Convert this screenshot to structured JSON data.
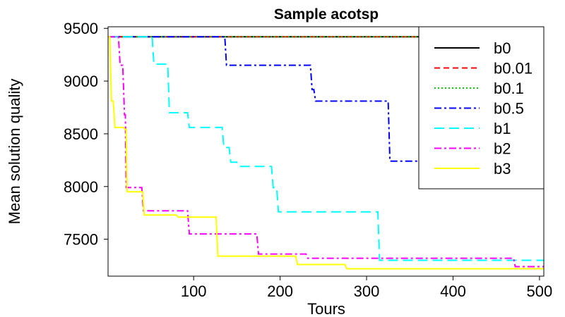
{
  "chart_data": {
    "type": "line",
    "title": "Sample acotsp",
    "xlabel": "Tours",
    "ylabel": "Mean solution quality",
    "xlim": [
      1,
      505
    ],
    "ylim": [
      7150,
      9515
    ],
    "xticks": [
      100,
      200,
      300,
      400,
      500
    ],
    "yticks": [
      7500,
      8000,
      8500,
      9000,
      9500
    ],
    "legend_position": "top-right",
    "grid": false,
    "series": [
      {
        "name": "b0",
        "color": "#000000",
        "dash": "solid",
        "x": [
          1,
          505
        ],
        "y": [
          9420,
          9420
        ]
      },
      {
        "name": "b0.01",
        "color": "#ff0000",
        "dash": "dashed",
        "x": [
          1,
          505
        ],
        "y": [
          9420,
          9420
        ]
      },
      {
        "name": "b0.1",
        "color": "#00cc00",
        "dash": "dotted",
        "x": [
          1,
          505
        ],
        "y": [
          9420,
          9420
        ]
      },
      {
        "name": "b0.5",
        "color": "#0000ff",
        "dash": "dashdot",
        "x": [
          1,
          136,
          138,
          235,
          237,
          239,
          241,
          325,
          327,
          505
        ],
        "y": [
          9420,
          9420,
          9150,
          9150,
          8920,
          8920,
          8810,
          8810,
          8240,
          8240
        ]
      },
      {
        "name": "b1",
        "color": "#00ffff",
        "dash": "longdash",
        "x": [
          1,
          52,
          54,
          70,
          72,
          93,
          95,
          133,
          135,
          141,
          143,
          150,
          152,
          190,
          192,
          196,
          198,
          313,
          315,
          505
        ],
        "y": [
          9420,
          9420,
          9160,
          9160,
          8700,
          8700,
          8560,
          8560,
          8370,
          8370,
          8230,
          8230,
          8190,
          8190,
          7990,
          7990,
          7760,
          7760,
          7300,
          7300
        ]
      },
      {
        "name": "b2",
        "color": "#ff00ff",
        "dash": "dashdot",
        "x": [
          1,
          5,
          7,
          13,
          15,
          18,
          20,
          21,
          22,
          40,
          42,
          93,
          95,
          173,
          175,
          230,
          232,
          470,
          472,
          505
        ],
        "y": [
          9420,
          9420,
          9420,
          9420,
          9150,
          9150,
          8680,
          8680,
          7990,
          7990,
          7770,
          7770,
          7550,
          7550,
          7360,
          7360,
          7320,
          7320,
          7240,
          7240
        ]
      },
      {
        "name": "b3",
        "color": "#ffff00",
        "dash": "solid",
        "x": [
          1,
          3,
          5,
          7,
          9,
          19,
          21,
          22,
          23,
          41,
          43,
          80,
          82,
          126,
          128,
          218,
          220,
          275,
          277,
          505
        ],
        "y": [
          9420,
          9420,
          8810,
          8810,
          8560,
          8560,
          8540,
          8540,
          7950,
          7950,
          7730,
          7730,
          7710,
          7710,
          7340,
          7340,
          7260,
          7260,
          7220,
          7220
        ]
      }
    ]
  }
}
